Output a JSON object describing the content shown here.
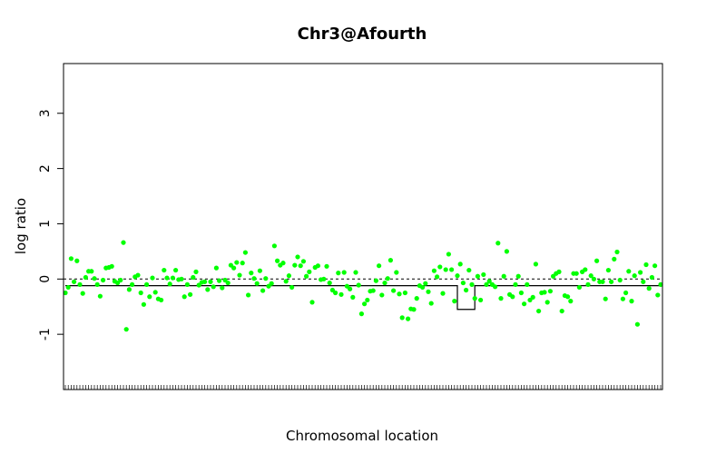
{
  "chart_data": {
    "type": "scatter",
    "title": "Chr3@Afourth",
    "xlabel": "Chromosomal location",
    "ylabel": "log ratio",
    "ylim": [
      -2,
      3.9
    ],
    "yticks": [
      -1,
      0,
      1,
      2,
      3
    ],
    "point_color": "#00ff00",
    "baseline_y": 0,
    "segments": [
      {
        "x_start": 0,
        "x_end": 135,
        "y": -0.12
      },
      {
        "x_start": 135,
        "x_end": 141,
        "y": -0.55
      },
      {
        "x_start": 141,
        "x_end": 245,
        "y": -0.12
      }
    ],
    "y": [
      -0.25,
      -0.15,
      0.37,
      -0.05,
      0.33,
      -0.1,
      -0.26,
      0.03,
      0.14,
      0.14,
      0.01,
      -0.1,
      -0.31,
      -0.02,
      0.2,
      0.21,
      0.23,
      -0.04,
      -0.07,
      -0.02,
      0.66,
      -0.91,
      -0.19,
      -0.1,
      0.04,
      0.07,
      -0.25,
      -0.46,
      -0.1,
      -0.32,
      0.02,
      -0.24,
      -0.36,
      -0.38,
      0.16,
      0.02,
      -0.09,
      0.02,
      0.16,
      -0.01,
      0.0,
      -0.32,
      -0.1,
      -0.28,
      0.03,
      0.13,
      -0.11,
      -0.06,
      -0.05,
      -0.19,
      -0.05,
      -0.14,
      0.2,
      -0.03,
      -0.16,
      -0.02,
      -0.07,
      0.25,
      0.2,
      0.3,
      0.07,
      0.29,
      0.48,
      -0.29,
      0.11,
      0.01,
      -0.08,
      0.15,
      -0.21,
      0.01,
      -0.13,
      -0.08,
      0.6,
      0.33,
      0.25,
      0.29,
      -0.04,
      0.06,
      -0.15,
      0.25,
      0.4,
      0.24,
      0.32,
      0.05,
      0.13,
      -0.42,
      0.21,
      0.24,
      -0.01,
      0.0,
      0.23,
      -0.07,
      -0.2,
      -0.25,
      0.11,
      -0.28,
      0.12,
      -0.13,
      -0.18,
      -0.33,
      0.12,
      -0.11,
      -0.63,
      -0.45,
      -0.38,
      -0.22,
      -0.21,
      -0.03,
      0.24,
      -0.29,
      -0.07,
      0.01,
      0.34,
      -0.21,
      0.12,
      -0.27,
      -0.7,
      -0.25,
      -0.72,
      -0.54,
      -0.55,
      -0.35,
      -0.12,
      -0.15,
      -0.08,
      -0.23,
      -0.44,
      0.15,
      0.04,
      0.22,
      -0.26,
      0.17,
      0.45,
      0.17,
      -0.4,
      0.06,
      0.27,
      -0.07,
      -0.2,
      0.16,
      -0.1,
      -0.35,
      0.05,
      -0.38,
      0.08,
      -0.1,
      -0.04,
      -0.1,
      -0.14,
      0.65,
      -0.35,
      0.05,
      0.5,
      -0.28,
      -0.32,
      -0.1,
      0.05,
      -0.25,
      -0.45,
      -0.1,
      -0.38,
      -0.33,
      0.27,
      -0.58,
      -0.25,
      -0.24,
      -0.42,
      -0.22,
      0.05,
      0.1,
      0.13,
      -0.58,
      -0.3,
      -0.32,
      -0.4,
      0.1,
      0.1,
      -0.15,
      0.13,
      0.17,
      -0.1,
      0.06,
      0.0,
      0.33,
      -0.05,
      -0.05,
      -0.36,
      0.16,
      -0.05,
      0.36,
      0.49,
      -0.02,
      -0.36,
      -0.25,
      0.14,
      -0.4,
      0.06,
      -0.82,
      0.12,
      -0.05,
      0.26,
      -0.17,
      0.03,
      0.24,
      -0.29,
      -0.1
    ]
  }
}
